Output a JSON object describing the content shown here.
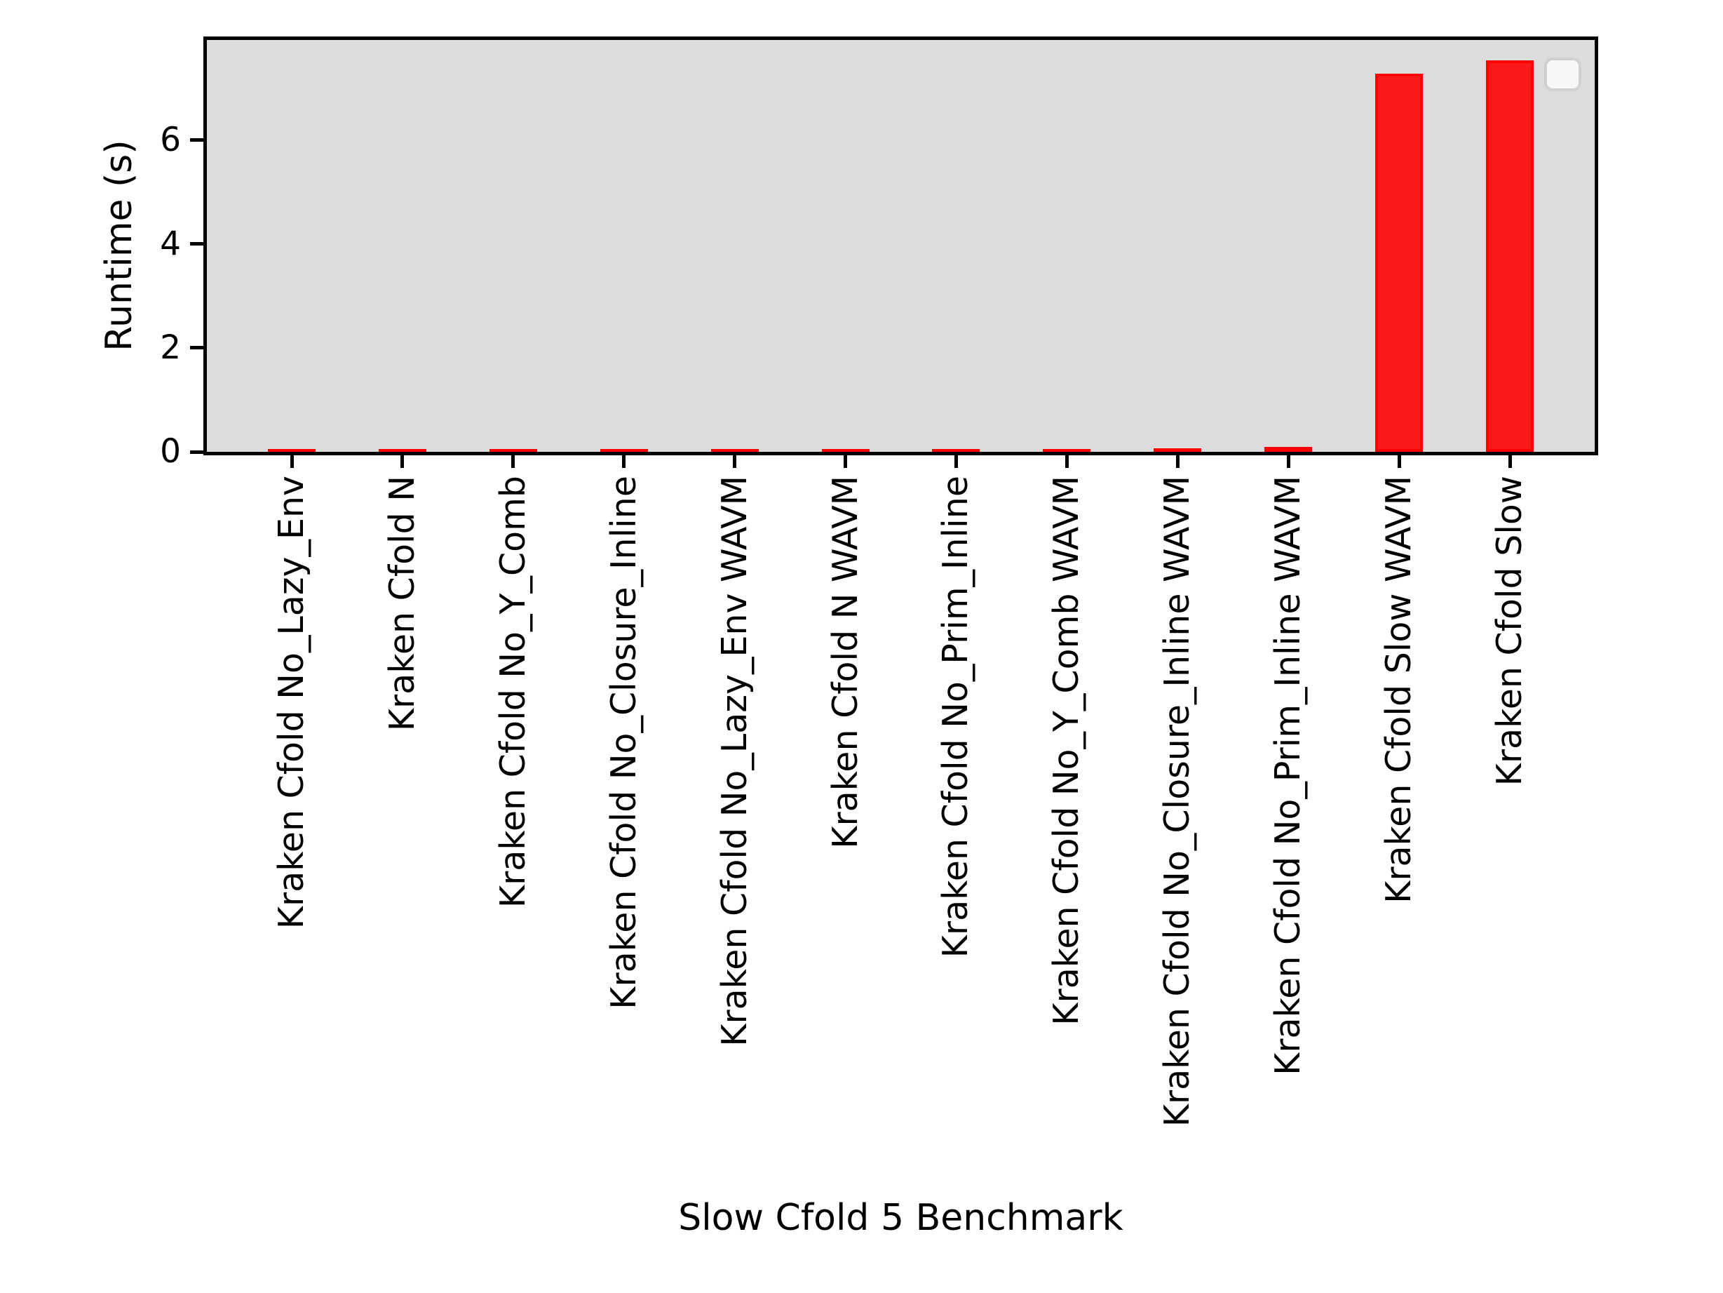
{
  "chart_data": {
    "type": "bar",
    "title": "",
    "xlabel": "Slow Cfold 5 Benchmark",
    "ylabel": "Runtime (s)",
    "categories": [
      "Kraken Cfold No_Lazy_Env",
      "Kraken Cfold N",
      "Kraken Cfold No_Y_Comb",
      "Kraken Cfold No_Closure_Inline",
      "Kraken Cfold No_Lazy_Env WAVM",
      "Kraken Cfold N WAVM",
      "Kraken Cfold No_Prim_Inline",
      "Kraken Cfold No_Y_Comb WAVM",
      "Kraken Cfold No_Closure_Inline WAVM",
      "Kraken Cfold No_Prim_Inline WAVM",
      "Kraken Cfold Slow WAVM",
      "Kraken Cfold Slow"
    ],
    "values": [
      0.05,
      0.05,
      0.05,
      0.05,
      0.06,
      0.06,
      0.06,
      0.06,
      0.07,
      0.09,
      7.28,
      7.54
    ],
    "yticks": [
      0,
      2,
      4,
      6
    ],
    "ylim": [
      0,
      7.93
    ],
    "grid": false,
    "legend": {
      "visible": true,
      "entries": [],
      "position": "upper right"
    },
    "colors": {
      "bar_fill": "#f81a1a",
      "bar_edge": "#ff0000",
      "plot_bg": "#dcdcdc",
      "figure_bg": "#ffffff",
      "axis": "#000000"
    }
  }
}
